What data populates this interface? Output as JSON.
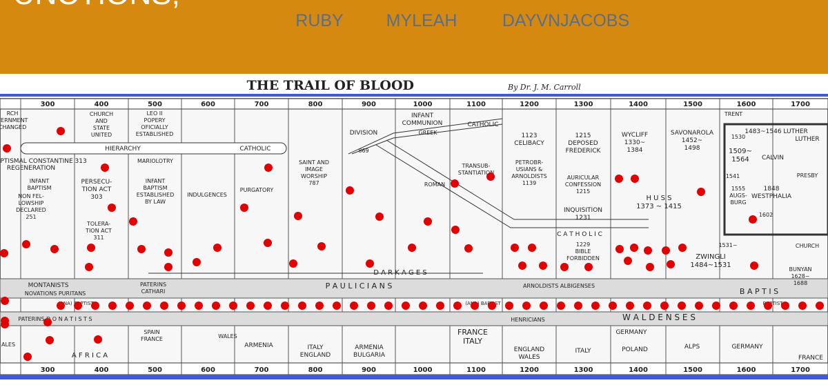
{
  "header": {
    "title": "FUNCTIONS,",
    "nav": [
      "RUBY",
      "MYLEAH",
      "DAYVNJACOBS"
    ]
  },
  "chart_image": {
    "title": "THE TRAIL OF BLOOD",
    "byline": "By Dr. J. M. Carroll",
    "years": [
      "300",
      "400",
      "500",
      "600",
      "700",
      "800",
      "900",
      "1000",
      "1100",
      "1200",
      "1300",
      "1400",
      "1500",
      "1600",
      "1700"
    ],
    "notes": [
      [
        "RCH",
        "VERNMENT",
        "CHANGED"
      ],
      [
        "CHURCH",
        "AND",
        "STATE",
        "UNITED"
      ],
      [
        "LEO II",
        "POPERY",
        "OFICIALLY",
        "ESTABLISHED"
      ],
      [
        "HIERARCHY"
      ],
      [
        "CATHOLIC"
      ],
      [
        "APTISMAL  CONSTANTINE 313"
      ],
      [
        "MARIOLOTRY"
      ],
      [
        "REGENERATION"
      ],
      [
        "INFANT",
        "BAPTISM"
      ],
      [
        "NON FEL-",
        "LOWSHIP",
        "DECLARED",
        "251"
      ],
      [
        "PERSECU-",
        "TION ACT",
        "303"
      ],
      [
        "TOLERA-",
        "TION ACT",
        "311"
      ],
      [
        "INFANT",
        "BAPTISM",
        "ESTABLISHED",
        "BY LAW"
      ],
      [
        "INDULGENCES"
      ],
      [
        "PURGATORY"
      ],
      [
        "SAINT AND",
        "IMAGE",
        "WORSHIP",
        "787"
      ],
      [
        "DIVISION"
      ],
      [
        "869"
      ],
      [
        "INFANT",
        "COMMUNION"
      ],
      [
        "GREEK"
      ],
      [
        "CATHOLIC"
      ],
      [
        "ROMAN"
      ],
      [
        "TRANSUB-",
        "STANTIATION"
      ],
      [
        "1123",
        "CELIBACY"
      ],
      [
        "PETROBR-",
        "USIANS &",
        "ARNOLDISTS",
        "1139"
      ],
      [
        "1215",
        "DEPOSED",
        "FREDERICK"
      ],
      [
        "AURICULAR",
        "CONFESSION",
        "1215"
      ],
      [
        "INQUISITION",
        "1231"
      ],
      [
        "C A T H O L I C"
      ],
      [
        "1229",
        "BIBLE",
        "FORBIDDEN"
      ],
      [
        "WYCLIFF",
        "1330~",
        "1384"
      ],
      [
        "H U S S",
        "1373 ~ 1415"
      ],
      [
        "SAVONAROLA",
        "1452~",
        "1498"
      ],
      [
        "TRENT"
      ],
      [
        "1483~1546 LUTHER"
      ],
      [
        "1530"
      ],
      [
        "LUTHER"
      ],
      [
        "1509~",
        "1564"
      ],
      [
        "CALVIN"
      ],
      [
        "1541"
      ],
      [
        "PRESBY"
      ],
      [
        "1555",
        "AUGS-",
        "BURG"
      ],
      [
        "1848",
        "WESTPHALIA"
      ],
      [
        "1602"
      ],
      [
        "1531~"
      ],
      [
        "ZWINGLI",
        "1484~1531"
      ],
      [
        "CHURCH"
      ],
      [
        "BUNYAN",
        "1628~",
        "1688"
      ],
      [
        "D A R K     A G E S"
      ],
      [
        "MONTANISTS"
      ],
      [
        "NOVATIONS PURITANS"
      ],
      [
        "PATERINS",
        "CATHARI"
      ],
      [
        "P  A  U  L  I  C  I  A  N  S"
      ],
      [
        "ARNOLDISTS ALBIGENSES"
      ],
      [
        "B  A  P  T  I  S"
      ],
      [
        "(ANA) BAPTIST"
      ],
      [
        "(ANA) BAPTIST"
      ],
      [
        "BAPTIST"
      ],
      [
        "PATERINS  D  O  N  A  T  I  S  T  S"
      ],
      [
        "HENRICIANS"
      ],
      [
        "W  A  L  D  E  N  S  E  S"
      ],
      [
        "FRANCE",
        "ITALY"
      ],
      [
        "GERMANY"
      ],
      [
        "ALES"
      ],
      [
        "A F R I C A"
      ],
      [
        "SPAIN",
        "FRANCE"
      ],
      [
        "WALES"
      ],
      [
        "ARMENIA"
      ],
      [
        "ITALY",
        "ENGLAND"
      ],
      [
        "ARMENIA",
        "BULGARIA"
      ],
      [
        "ENGLAND",
        "WALES"
      ],
      [
        "ITALY"
      ],
      [
        "POLAND"
      ],
      [
        "ALPS"
      ],
      [
        "GERMANY"
      ],
      [
        "FRANCE"
      ]
    ]
  }
}
